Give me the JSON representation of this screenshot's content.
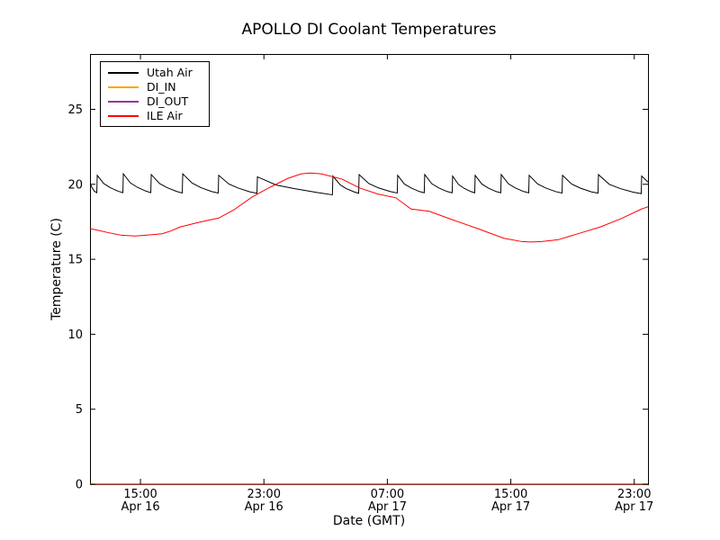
{
  "window": {
    "background": "#ffffff"
  },
  "chart_data": {
    "type": "line",
    "title": "APOLLO DI Coolant Temperatures",
    "xlabel": "Date (GMT)",
    "ylabel": "Temperature (C)",
    "x_unit": "hours since Apr 16 00:00 GMT",
    "xlim": [
      11.73,
      47.89
    ],
    "ylim": [
      0,
      28.69
    ],
    "grid": false,
    "legend_position": "upper left",
    "tick_direction": "in",
    "y_ticks": [
      0,
      5,
      10,
      15,
      20,
      25
    ],
    "x_ticks": [
      {
        "t": 15,
        "time": "15:00",
        "date": "Apr 16"
      },
      {
        "t": 23,
        "time": "23:00",
        "date": "Apr 16"
      },
      {
        "t": 31,
        "time": "07:00",
        "date": "Apr 17"
      },
      {
        "t": 39,
        "time": "15:00",
        "date": "Apr 17"
      },
      {
        "t": 47,
        "time": "23:00",
        "date": "Apr 17"
      }
    ],
    "series": [
      {
        "name": "Utah Air",
        "color": "#000000",
        "width": 1,
        "opacity": 1,
        "points": [
          [
            11.73,
            20.1
          ],
          [
            11.85,
            19.8
          ],
          [
            12.0,
            19.55
          ],
          [
            12.17,
            19.44
          ],
          [
            12.2,
            20.6
          ],
          [
            12.62,
            20.05
          ],
          [
            13.05,
            19.77
          ],
          [
            13.55,
            19.54
          ],
          [
            13.86,
            19.44
          ],
          [
            13.89,
            20.7
          ],
          [
            14.34,
            20.1
          ],
          [
            14.8,
            19.8
          ],
          [
            15.34,
            19.55
          ],
          [
            15.67,
            19.44
          ],
          [
            15.7,
            20.65
          ],
          [
            16.24,
            20.05
          ],
          [
            16.72,
            19.78
          ],
          [
            17.33,
            19.53
          ],
          [
            17.71,
            19.42
          ],
          [
            17.74,
            20.7
          ],
          [
            18.35,
            20.08
          ],
          [
            18.91,
            19.78
          ],
          [
            19.6,
            19.52
          ],
          [
            20.04,
            19.42
          ],
          [
            20.07,
            20.6
          ],
          [
            20.73,
            20.02
          ],
          [
            21.33,
            19.75
          ],
          [
            22.08,
            19.5
          ],
          [
            22.55,
            19.4
          ],
          [
            22.58,
            20.5
          ],
          [
            23.8,
            19.95
          ],
          [
            25.03,
            19.7
          ],
          [
            26.49,
            19.45
          ],
          [
            27.44,
            19.3
          ],
          [
            27.47,
            20.55
          ],
          [
            27.93,
            19.98
          ],
          [
            28.32,
            19.72
          ],
          [
            28.83,
            19.5
          ],
          [
            29.14,
            19.4
          ],
          [
            29.17,
            20.65
          ],
          [
            29.8,
            20.05
          ],
          [
            30.42,
            19.76
          ],
          [
            31.17,
            19.52
          ],
          [
            31.64,
            19.42
          ],
          [
            31.67,
            20.6
          ],
          [
            32.1,
            20.02
          ],
          [
            32.55,
            19.75
          ],
          [
            33.07,
            19.52
          ],
          [
            33.39,
            19.43
          ],
          [
            33.42,
            20.65
          ],
          [
            33.88,
            20.04
          ],
          [
            34.33,
            19.76
          ],
          [
            34.87,
            19.52
          ],
          [
            35.2,
            19.43
          ],
          [
            35.23,
            20.55
          ],
          [
            35.6,
            20.0
          ],
          [
            35.96,
            19.74
          ],
          [
            36.4,
            19.52
          ],
          [
            36.66,
            19.43
          ],
          [
            36.69,
            20.6
          ],
          [
            37.12,
            20.02
          ],
          [
            37.54,
            19.75
          ],
          [
            38.04,
            19.52
          ],
          [
            38.35,
            19.43
          ],
          [
            38.38,
            20.65
          ],
          [
            38.84,
            20.04
          ],
          [
            39.29,
            19.76
          ],
          [
            39.83,
            19.52
          ],
          [
            40.16,
            19.43
          ],
          [
            40.19,
            20.6
          ],
          [
            40.74,
            20.02
          ],
          [
            41.27,
            19.75
          ],
          [
            41.92,
            19.51
          ],
          [
            42.32,
            19.42
          ],
          [
            42.35,
            20.6
          ],
          [
            42.94,
            20.02
          ],
          [
            43.52,
            19.74
          ],
          [
            44.21,
            19.5
          ],
          [
            44.65,
            19.41
          ],
          [
            44.68,
            20.65
          ],
          [
            45.38,
            20.0
          ],
          [
            46.08,
            19.72
          ],
          [
            46.92,
            19.48
          ],
          [
            47.45,
            19.38
          ],
          [
            47.48,
            20.55
          ],
          [
            47.89,
            20.15
          ]
        ]
      },
      {
        "name": "DI_IN",
        "color": "#ffa500",
        "width": 1.4,
        "opacity": 1,
        "points": [
          [
            11.73,
            0
          ],
          [
            47.89,
            0
          ]
        ]
      },
      {
        "name": "DI_OUT",
        "color": "#800080",
        "width": 1.1,
        "opacity": 0.8,
        "points": [
          [
            11.73,
            0
          ],
          [
            47.89,
            0
          ]
        ]
      },
      {
        "name": "ILE Air",
        "color": "#ff0000",
        "width": 1,
        "opacity": 1,
        "points": [
          [
            11.73,
            17.05
          ],
          [
            12.31,
            16.92
          ],
          [
            12.9,
            16.78
          ],
          [
            13.77,
            16.6
          ],
          [
            14.65,
            16.55
          ],
          [
            15.52,
            16.62
          ],
          [
            16.4,
            16.7
          ],
          [
            17.0,
            16.9
          ],
          [
            17.56,
            17.15
          ],
          [
            18.73,
            17.45
          ],
          [
            20.07,
            17.75
          ],
          [
            21.06,
            18.3
          ],
          [
            22.23,
            19.15
          ],
          [
            23.39,
            19.8
          ],
          [
            24.56,
            20.4
          ],
          [
            25.43,
            20.7
          ],
          [
            26.01,
            20.75
          ],
          [
            26.71,
            20.7
          ],
          [
            28.05,
            20.35
          ],
          [
            29.22,
            19.75
          ],
          [
            30.39,
            19.35
          ],
          [
            31.55,
            19.1
          ],
          [
            32.54,
            18.35
          ],
          [
            33.71,
            18.2
          ],
          [
            35.05,
            17.7
          ],
          [
            36.97,
            17.0
          ],
          [
            38.55,
            16.4
          ],
          [
            39.72,
            16.18
          ],
          [
            40.3,
            16.15
          ],
          [
            41.0,
            16.18
          ],
          [
            42.05,
            16.3
          ],
          [
            43.5,
            16.75
          ],
          [
            44.79,
            17.15
          ],
          [
            46.13,
            17.7
          ],
          [
            47.47,
            18.35
          ],
          [
            47.89,
            18.5
          ]
        ]
      }
    ]
  }
}
